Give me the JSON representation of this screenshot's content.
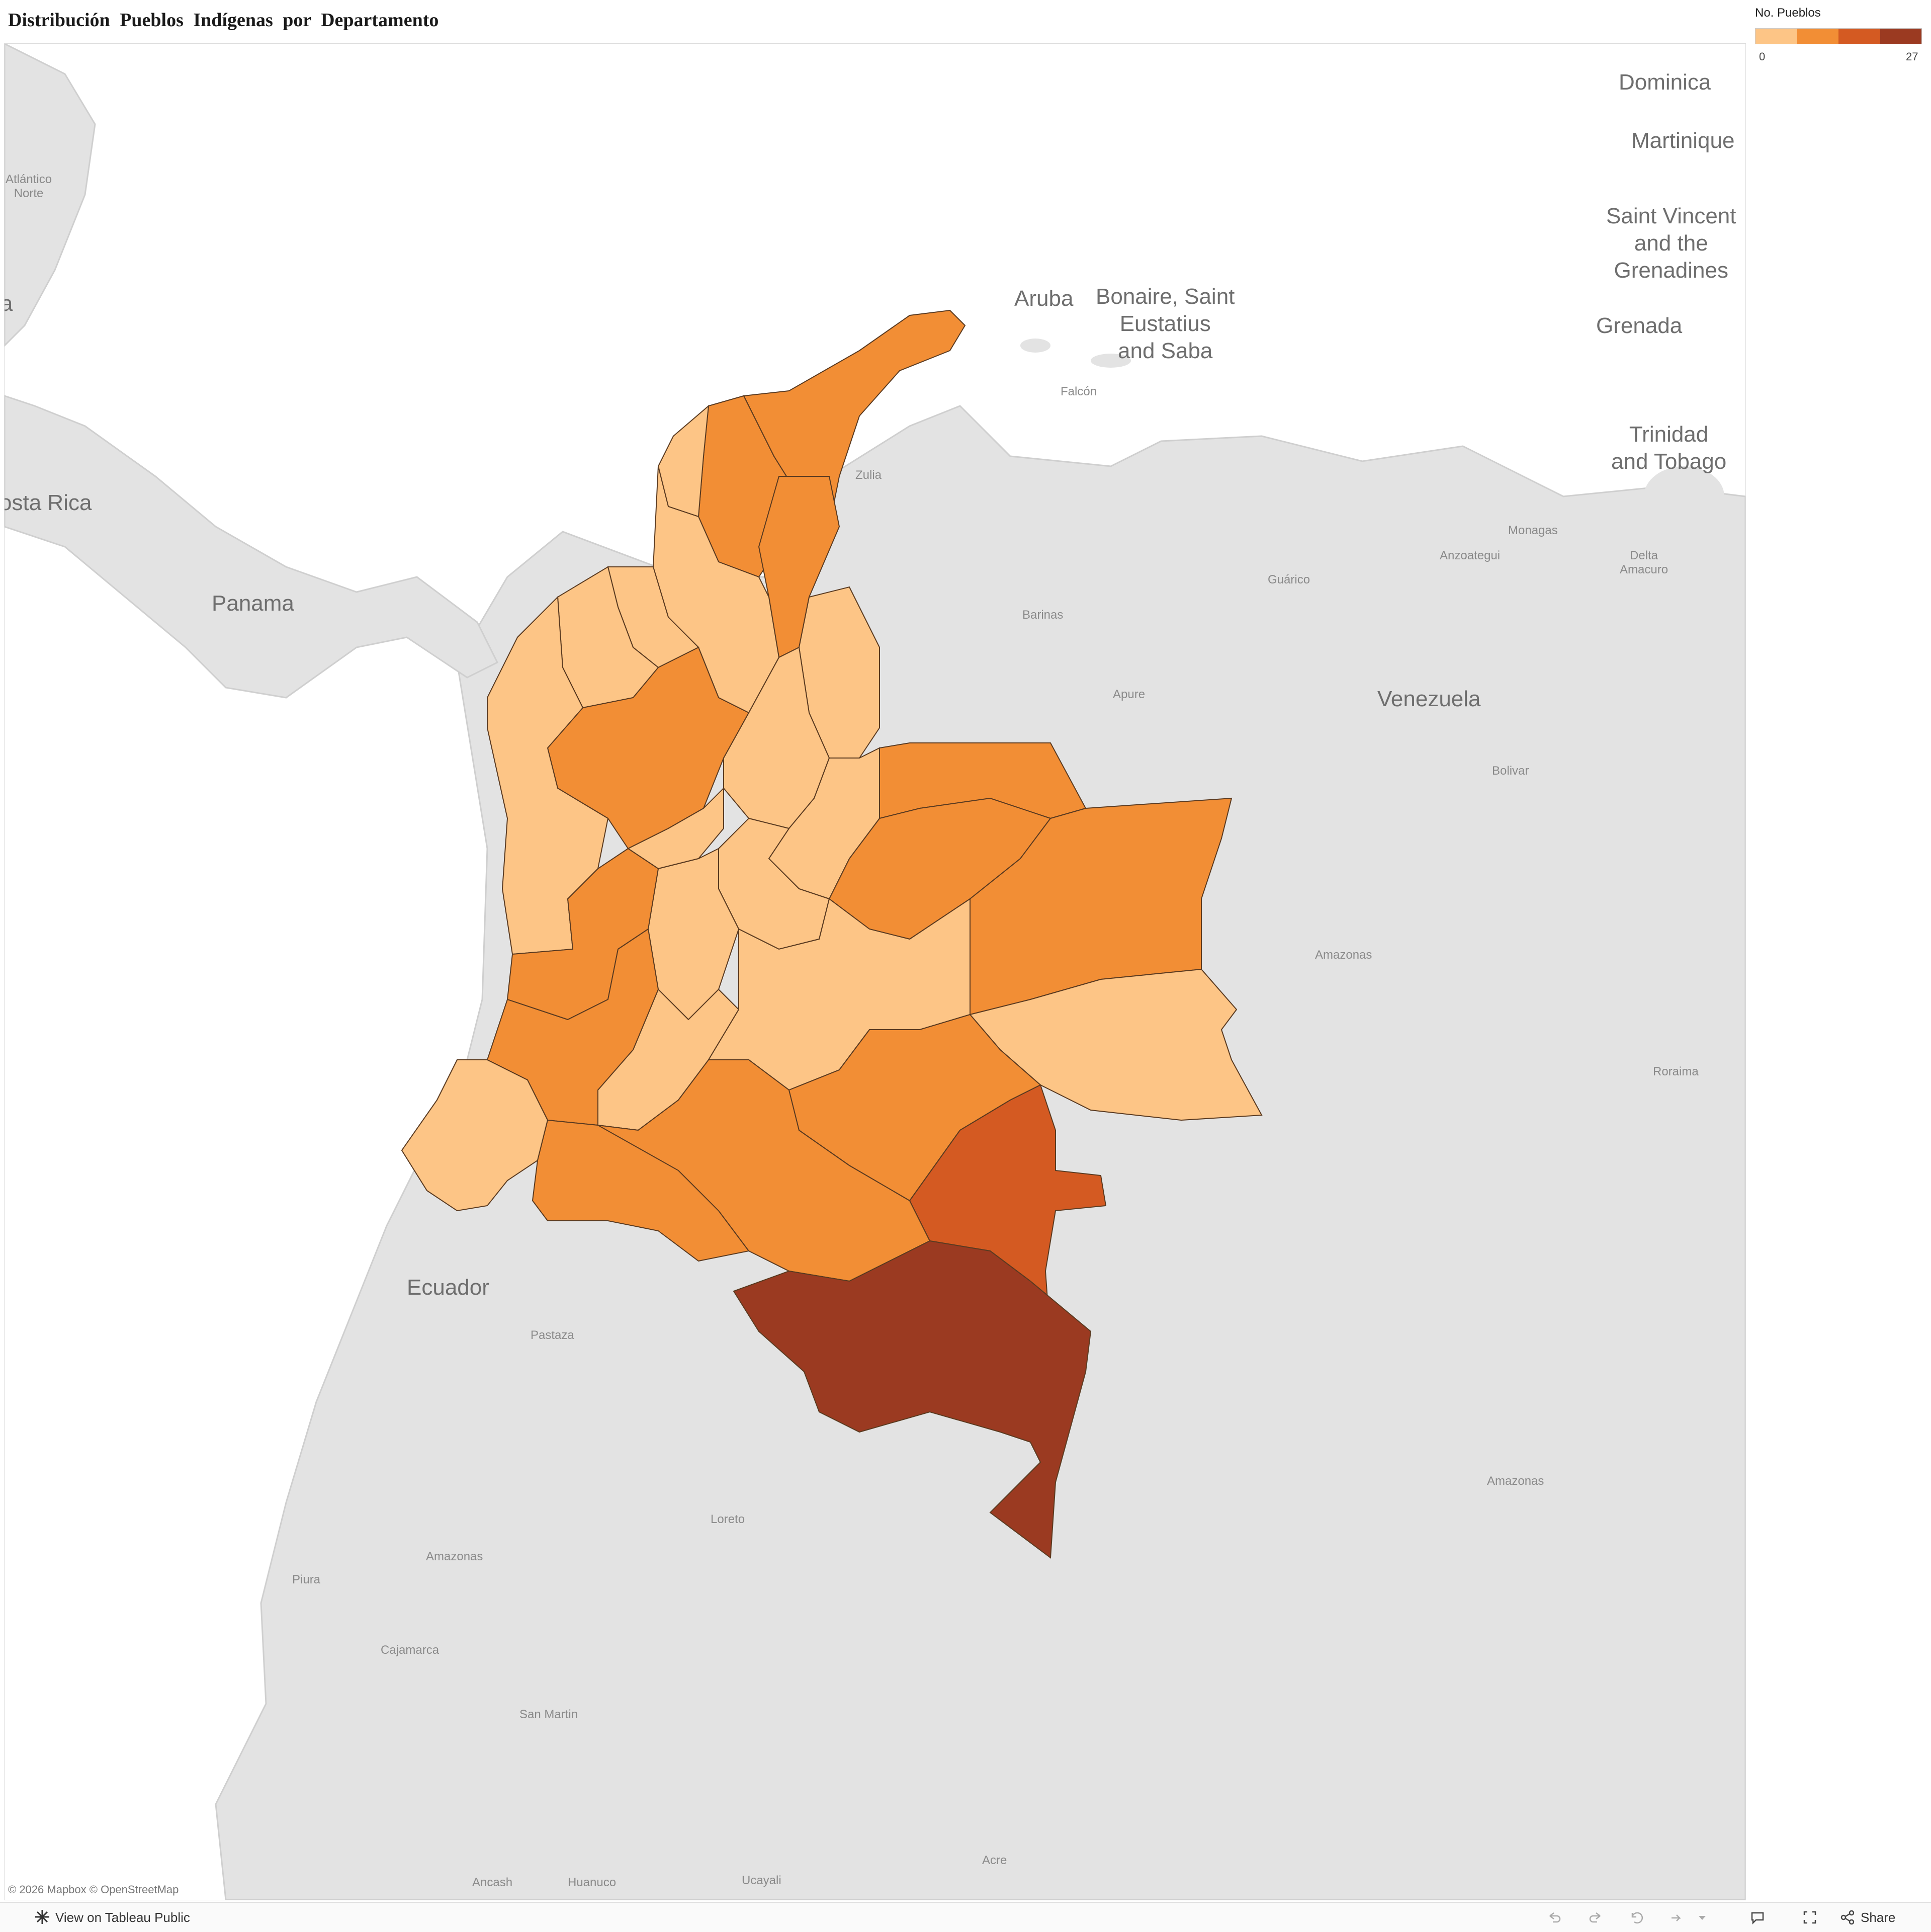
{
  "title": "Distribución  Pueblos  Indígenas  por  Departamento",
  "legend": {
    "title": "No. Pueblos",
    "min": "0",
    "max": "27",
    "colors": [
      "#FDC586",
      "#F28E35",
      "#D45A22",
      "#9B3A21"
    ]
  },
  "map_labels": {
    "dominica": "Dominica",
    "martinique": "Martinique",
    "saint_vincent": "Saint Vincent\nand the\nGrenadines",
    "grenada": "Grenada",
    "trinidad": "Trinidad\nand Tobago",
    "aruba": "Aruba",
    "bonaire": "Bonaire, Saint\nEustatius\nand Saba",
    "atlantico_norte": "Atlántico\nNorte",
    "costa_rica": "osta Rica",
    "panama": "Panama",
    "venezuela": "Venezuela",
    "ecuador": "Ecuador",
    "falcon": "Falcón",
    "zulia": "Zulia",
    "anzoategui": "Anzoategui",
    "monagas": "Monagas",
    "delta_amacuro": "Delta\nAmacuro",
    "guarico": "Guárico",
    "barinas": "Barinas",
    "apure": "Apure",
    "bolivar": "Bolivar",
    "amazonas_ve": "Amazonas",
    "roraima": "Roraima",
    "amazonas_br": "Amazonas",
    "pastaza": "Pastaza",
    "loreto": "Loreto",
    "piura": "Piura",
    "amazonas_pe": "Amazonas",
    "cajamarca": "Cajamarca",
    "san_martin": "San Martin",
    "ancash": "Ancash",
    "huanuco": "Huanuco",
    "ucayali": "Ucayali",
    "acre": "Acre",
    "edge_a": "a"
  },
  "attribution": "© 2026 Mapbox  © OpenStreetMap",
  "footer": {
    "view_on_tableau": "View on Tableau Public",
    "share": "Share"
  }
}
